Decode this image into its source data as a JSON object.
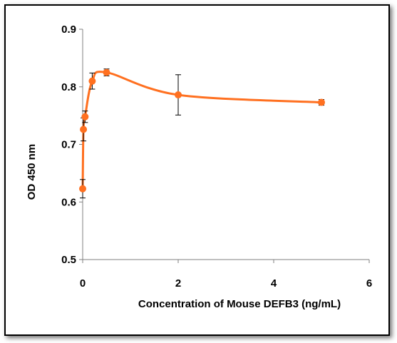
{
  "chart_data": {
    "type": "line",
    "title": "",
    "xlabel": "Concentration of Mouse DEFB3 (ng/mL)",
    "ylabel": "OD 450 nm",
    "xlim": [
      0,
      6
    ],
    "ylim": [
      0.5,
      0.9
    ],
    "xticks": [
      0,
      2,
      4,
      6
    ],
    "yticks": [
      0.5,
      0.6,
      0.7,
      0.8,
      0.9
    ],
    "xtick_labels": [
      "0",
      "2",
      "4",
      "6"
    ],
    "ytick_labels": [
      "0.5",
      "0.6",
      "0.7",
      "0.8",
      "0.9"
    ],
    "grid": false,
    "legend": "none",
    "series": [
      {
        "color": "#ff7020",
        "x": [
          0.0,
          0.016,
          0.05,
          0.2,
          0.5,
          2.0,
          5.0
        ],
        "y": [
          0.623,
          0.726,
          0.748,
          0.81,
          0.825,
          0.786,
          0.773
        ],
        "error": [
          0.016,
          0.02,
          0.01,
          0.014,
          0.006,
          0.035,
          0.005
        ]
      }
    ]
  }
}
